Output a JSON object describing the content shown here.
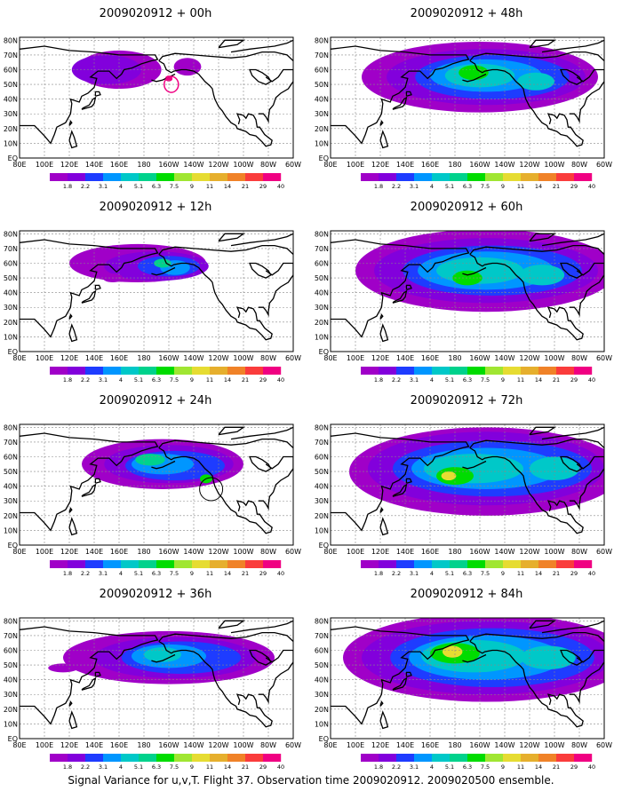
{
  "panels": [
    {
      "title": "2009020912 + 00h",
      "lead": 0
    },
    {
      "title": "2009020912 + 48h",
      "lead": 48
    },
    {
      "title": "2009020912 + 12h",
      "lead": 12
    },
    {
      "title": "2009020912 + 60h",
      "lead": 60
    },
    {
      "title": "2009020912 + 24h",
      "lead": 24
    },
    {
      "title": "2009020912 + 72h",
      "lead": 72
    },
    {
      "title": "2009020912 + 36h",
      "lead": 36
    },
    {
      "title": "2009020912 + 84h",
      "lead": 84
    }
  ],
  "lon_labels": [
    "80E",
    "100E",
    "120E",
    "140E",
    "160E",
    "180",
    "160W",
    "140W",
    "120W",
    "100W",
    "80W",
    "60W"
  ],
  "lat_labels": [
    "80N",
    "70N",
    "60N",
    "50N",
    "40N",
    "30N",
    "20N",
    "10N",
    "EQ"
  ],
  "legend": {
    "labels": [
      "1.8",
      "2.2",
      "3.1",
      "4",
      "5.1",
      "6.3",
      "7.5",
      "9",
      "11",
      "14",
      "21",
      "29",
      "40"
    ],
    "colors": [
      "#a000c8",
      "#8200dc",
      "#1e3cff",
      "#0096ff",
      "#00c8c8",
      "#00d28c",
      "#00dc00",
      "#a0e632",
      "#e6dc32",
      "#e6af2d",
      "#f08228",
      "#fa3c3c",
      "#f00082"
    ]
  },
  "footer": "Signal Variance for u,v,T. Flight 37. Observation time 2009020912. 2009020500 ensemble."
}
